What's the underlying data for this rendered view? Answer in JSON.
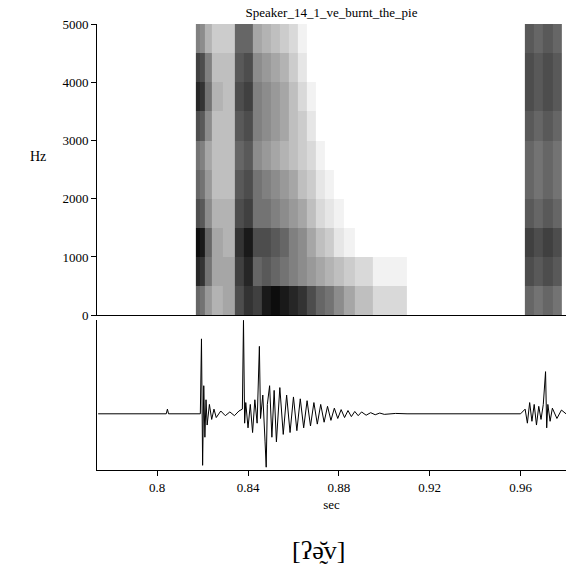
{
  "chart_data": [
    {
      "type": "heatmap",
      "title": "Speaker_14_1_ve_burnt_the_pie",
      "y_label": "Hz",
      "x": [
        0.775,
        0.816,
        0.818,
        0.82,
        0.822,
        0.826,
        0.832,
        0.836,
        0.84,
        0.844,
        0.848,
        0.852,
        0.856,
        0.86,
        0.864,
        0.868,
        0.872,
        0.876,
        0.88,
        0.884,
        0.89,
        0.9,
        0.92,
        0.96,
        0.964,
        0.968,
        0.972,
        0.976
      ],
      "y": [
        250,
        750,
        1250,
        1750,
        2250,
        2750,
        3250,
        3750,
        4250,
        4750
      ],
      "z": [
        [
          0,
          0,
          60,
          55,
          40,
          30,
          35,
          70,
          80,
          75,
          90,
          95,
          90,
          85,
          80,
          70,
          60,
          55,
          45,
          35,
          25,
          15,
          0,
          0,
          60,
          55,
          60,
          55
        ],
        [
          0,
          0,
          85,
          80,
          55,
          35,
          35,
          75,
          85,
          60,
          65,
          60,
          55,
          50,
          45,
          40,
          35,
          30,
          25,
          20,
          15,
          5,
          0,
          0,
          70,
          65,
          70,
          65
        ],
        [
          0,
          0,
          95,
          90,
          60,
          35,
          30,
          80,
          90,
          70,
          70,
          65,
          60,
          50,
          45,
          35,
          25,
          20,
          10,
          5,
          0,
          0,
          0,
          0,
          75,
          70,
          75,
          70
        ],
        [
          0,
          0,
          70,
          65,
          45,
          30,
          30,
          70,
          75,
          55,
          55,
          50,
          45,
          40,
          35,
          25,
          15,
          10,
          5,
          0,
          0,
          0,
          0,
          0,
          65,
          60,
          65,
          60
        ],
        [
          0,
          0,
          60,
          55,
          40,
          25,
          25,
          65,
          70,
          55,
          50,
          45,
          40,
          35,
          25,
          20,
          10,
          5,
          0,
          0,
          0,
          0,
          0,
          0,
          60,
          55,
          60,
          55
        ],
        [
          0,
          0,
          55,
          50,
          35,
          25,
          25,
          60,
          65,
          45,
          40,
          35,
          30,
          25,
          20,
          15,
          5,
          0,
          0,
          0,
          0,
          0,
          0,
          0,
          60,
          55,
          60,
          55
        ],
        [
          0,
          0,
          70,
          65,
          45,
          25,
          25,
          65,
          70,
          50,
          45,
          40,
          35,
          25,
          20,
          10,
          0,
          0,
          0,
          0,
          0,
          0,
          0,
          0,
          65,
          60,
          65,
          60
        ],
        [
          0,
          0,
          85,
          80,
          55,
          30,
          25,
          70,
          75,
          50,
          45,
          40,
          35,
          25,
          15,
          5,
          0,
          0,
          0,
          0,
          0,
          0,
          0,
          0,
          70,
          65,
          70,
          65
        ],
        [
          0,
          0,
          75,
          70,
          50,
          25,
          25,
          65,
          70,
          45,
          40,
          35,
          30,
          20,
          10,
          0,
          0,
          0,
          0,
          0,
          0,
          0,
          0,
          0,
          70,
          65,
          70,
          65
        ],
        [
          0,
          0,
          50,
          45,
          30,
          20,
          20,
          60,
          60,
          35,
          30,
          25,
          20,
          15,
          5,
          0,
          0,
          0,
          0,
          0,
          0,
          0,
          0,
          0,
          65,
          60,
          65,
          60
        ]
      ],
      "zlim": [
        0,
        100
      ],
      "xlim": [
        0.7735,
        0.98
      ],
      "ylim": [
        0,
        5000
      ],
      "yticks": [
        0,
        1000,
        2000,
        3000,
        4000,
        5000
      ],
      "tick_labels": "y"
    },
    {
      "type": "line",
      "x_label": "sec",
      "color": "#000000",
      "x": [
        0.774,
        0.804,
        0.8045,
        0.805,
        0.819,
        0.8195,
        0.82,
        0.8205,
        0.821,
        0.8215,
        0.822,
        0.823,
        0.824,
        0.825,
        0.826,
        0.828,
        0.83,
        0.832,
        0.834,
        0.836,
        0.8375,
        0.838,
        0.8385,
        0.839,
        0.84,
        0.841,
        0.842,
        0.843,
        0.844,
        0.845,
        0.8455,
        0.8465,
        0.8475,
        0.848,
        0.8485,
        0.8495,
        0.8505,
        0.8515,
        0.8525,
        0.854,
        0.8555,
        0.857,
        0.8585,
        0.86,
        0.8615,
        0.863,
        0.8645,
        0.866,
        0.8675,
        0.869,
        0.8705,
        0.872,
        0.8735,
        0.875,
        0.8765,
        0.878,
        0.8795,
        0.881,
        0.8825,
        0.884,
        0.8855,
        0.887,
        0.8885,
        0.89,
        0.892,
        0.894,
        0.896,
        0.898,
        0.9,
        0.905,
        0.91,
        0.96,
        0.962,
        0.963,
        0.964,
        0.965,
        0.966,
        0.967,
        0.968,
        0.969,
        0.97,
        0.971,
        0.9715,
        0.972,
        0.973,
        0.974,
        0.976,
        0.978,
        0.98
      ],
      "values": [
        0,
        0,
        0.05,
        0,
        0,
        0.8,
        -0.55,
        0.3,
        -0.25,
        0.15,
        -0.12,
        0.1,
        -0.06,
        0.05,
        -0.04,
        0.03,
        -0.02,
        0.02,
        -0.02,
        0.03,
        0.05,
        1.0,
        -0.1,
        0.12,
        -0.15,
        0.1,
        -0.2,
        0.15,
        -0.1,
        0.72,
        -0.05,
        0.2,
        -0.3,
        -0.57,
        0.1,
        0.3,
        -0.25,
        0.25,
        -0.3,
        0.28,
        -0.22,
        0.2,
        -0.2,
        0.18,
        -0.18,
        0.16,
        -0.15,
        0.14,
        -0.13,
        0.12,
        -0.11,
        0.1,
        -0.09,
        0.08,
        -0.07,
        0.06,
        -0.05,
        0.045,
        -0.04,
        0.035,
        -0.03,
        0.025,
        -0.02,
        0.02,
        -0.015,
        0.012,
        -0.01,
        0.008,
        -0.006,
        0.004,
        0,
        0,
        0.05,
        -0.1,
        0.12,
        -0.08,
        0.1,
        -0.12,
        0.08,
        -0.06,
        0.1,
        0.45,
        -0.15,
        0.1,
        -0.08,
        0.06,
        -0.05,
        0.04,
        0
      ],
      "xlim": [
        0.7735,
        0.98
      ],
      "xticks": [
        0.8,
        0.84,
        0.88,
        0.92,
        0.96
      ],
      "ylim": [
        -0.6,
        1.0
      ],
      "tick_labels": "x"
    }
  ],
  "caption": "[ʔə̰̆v]"
}
